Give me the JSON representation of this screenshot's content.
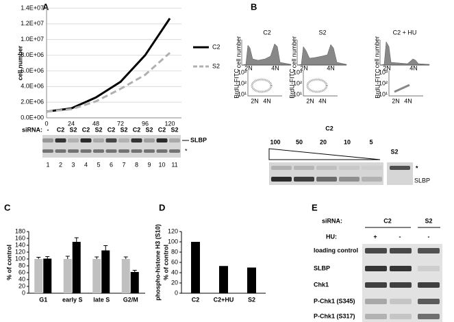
{
  "panel_labels": [
    "A",
    "B",
    "C",
    "D",
    "E"
  ],
  "chart_data": [
    {
      "type": "line",
      "ylabel": "cell number",
      "categories": [
        "0",
        "24",
        "48",
        "72",
        "96",
        "120"
      ],
      "series": [
        {
          "name": "C2",
          "color": "#000000",
          "line_style": "solid",
          "values": [
            800000,
            1200000,
            2600000,
            4600000,
            8000000,
            12700000
          ]
        },
        {
          "name": "S2",
          "color": "#b0b0b0",
          "line_style": "dashed",
          "values": [
            800000,
            1100000,
            2100000,
            3700000,
            5500000,
            8300000
          ]
        }
      ],
      "ylim": [
        0,
        14000000
      ],
      "yticks": [
        {
          "value": 0,
          "label": "0.0E+00"
        },
        {
          "value": 2000000,
          "label": "2.0E+06"
        },
        {
          "value": 4000000,
          "label": "4.0E+06"
        },
        {
          "value": 6000000,
          "label": "6.0E+06"
        },
        {
          "value": 8000000,
          "label": "8.0E+06"
        },
        {
          "value": 10000000,
          "label": "1.0E+07"
        },
        {
          "value": 12000000,
          "label": "1.2E+07"
        },
        {
          "value": 14000000,
          "label": "1.4E+07"
        }
      ],
      "grid": true,
      "legend": "right"
    },
    {
      "type": "bar",
      "ylabel": "% of control",
      "categories": [
        "G1",
        "early S",
        "late S",
        "G2/M"
      ],
      "series": [
        {
          "color": "#c0c0c0",
          "values": [
            100,
            100,
            100,
            100
          ],
          "errors": [
            5,
            8,
            6,
            6
          ]
        },
        {
          "color": "#000000",
          "values": [
            101,
            150,
            125,
            62
          ],
          "errors": [
            6,
            12,
            14,
            5
          ]
        }
      ],
      "ylim": [
        0,
        180
      ],
      "yticks": [
        0,
        20,
        40,
        60,
        80,
        100,
        120,
        140,
        160,
        180
      ]
    },
    {
      "type": "bar",
      "ylabel": [
        "phospho-histone H3 (S10)",
        "% of control"
      ],
      "categories": [
        "C2",
        "C2+HU",
        "S2"
      ],
      "values": [
        100,
        53,
        50
      ],
      "color": "#000000",
      "ylim": [
        0,
        120
      ],
      "yticks": [
        0,
        20,
        40,
        60,
        80,
        100,
        120
      ]
    }
  ],
  "blot_a": {
    "row_label": "siRNA:",
    "lanes": [
      "-",
      "C2",
      "S2",
      "C2",
      "S2",
      "C2",
      "S2",
      "C2",
      "S2",
      "C2",
      "S2"
    ],
    "lane_numbers": [
      "1",
      "2",
      "3",
      "4",
      "5",
      "6",
      "7",
      "8",
      "9",
      "10",
      "11"
    ],
    "bands": [
      "SLBP",
      "*"
    ]
  },
  "flow_b": {
    "columns": [
      "C2",
      "S2",
      "C2 + HU"
    ],
    "hist_ylabel": "cell number",
    "dna_labels": [
      "2N",
      "4N"
    ],
    "scatter_ylabel": "BrdU-FITC",
    "scatter_ticks": [
      "10³",
      "10²",
      "10¹"
    ]
  },
  "blot_b": {
    "title": "C2",
    "dilutions": [
      "100",
      "50",
      "20",
      "10",
      "5"
    ],
    "control": "S2",
    "bands": [
      "*",
      "SLBP"
    ]
  },
  "blot_e": {
    "sirna_label": "siRNA:",
    "sirna": [
      "C2",
      "S2"
    ],
    "hu_label": "HU:",
    "hu": [
      "+",
      "-",
      "-"
    ],
    "rows": [
      "loading control",
      "SLBP",
      "Chk1",
      "P-Chk1 (S345)",
      "P-Chk1 (S317)"
    ]
  }
}
